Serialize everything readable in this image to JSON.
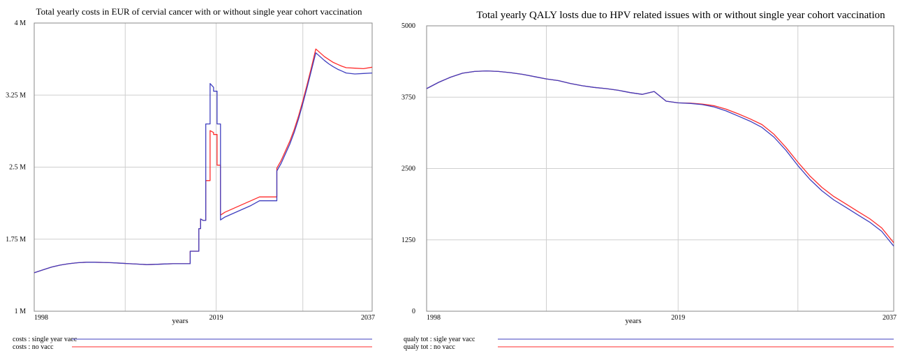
{
  "chart_data": [
    {
      "type": "line",
      "title": "Total yearly costs in EUR of cervial cancer with or without single year cohort vaccination",
      "xlabel": "years",
      "ylabel": "",
      "xlim": [
        1998,
        2037
      ],
      "ylim": [
        1000000,
        4000000
      ],
      "x_ticks": [
        "1998",
        "2019",
        "2037"
      ],
      "y_ticks": [
        "1 M",
        "1.75 M",
        "2.5 M",
        "3.25 M",
        "4 M"
      ],
      "y_tick_values": [
        1000000,
        1750000,
        2500000,
        3250000,
        4000000
      ],
      "x_grid": [
        1998,
        2008.5,
        2019,
        2029,
        2037
      ],
      "grid": true,
      "legend_position": "bottom",
      "series": [
        {
          "name": "costs : single year vacc",
          "color": "#3f3fbf",
          "x": [
            1998,
            1999,
            2000,
            2001,
            2002,
            2003,
            2004,
            2005,
            2006,
            2007,
            2008,
            2009,
            2010,
            2011,
            2012,
            2013,
            2014,
            2015,
            2015.999,
            2016,
            2016.999,
            2017,
            2017.2,
            2017.201,
            2017.5,
            2017.8,
            2017.801,
            2018.3,
            2018.301,
            2018.7,
            2018.701,
            2019.1,
            2019.101,
            2019.5,
            2019.501,
            2020,
            2021,
            2022,
            2023,
            2024,
            2025.999,
            2026,
            2026.5,
            2027,
            2027.5,
            2028,
            2028.5,
            2029,
            2029.5,
            2030,
            2030.5,
            2031,
            2031.5,
            2032,
            2032.5,
            2033,
            2033.5,
            2034,
            2035,
            2036,
            2037
          ],
          "values": [
            1400000,
            1430000,
            1460000,
            1480000,
            1495000,
            1505000,
            1510000,
            1510000,
            1508000,
            1505000,
            1500000,
            1495000,
            1490000,
            1485000,
            1488000,
            1492000,
            1495000,
            1495000,
            1495000,
            1625000,
            1625000,
            1860000,
            1860000,
            1960000,
            1945000,
            1945000,
            2950000,
            2950000,
            3370000,
            3330000,
            3290000,
            3290000,
            2950000,
            2950000,
            1950000,
            1980000,
            2020000,
            2060000,
            2100000,
            2150000,
            2150000,
            2460000,
            2540000,
            2640000,
            2740000,
            2860000,
            3000000,
            3160000,
            3330000,
            3510000,
            3690000,
            3650000,
            3610000,
            3575000,
            3545000,
            3520000,
            3500000,
            3480000,
            3470000,
            3475000,
            3480000
          ]
        },
        {
          "name": "costs : no vacc",
          "color": "#ff2b2b",
          "x": [
            1998,
            1999,
            2000,
            2001,
            2002,
            2003,
            2004,
            2005,
            2006,
            2007,
            2008,
            2009,
            2010,
            2011,
            2012,
            2013,
            2014,
            2015,
            2015.999,
            2016,
            2016.999,
            2017,
            2017.2,
            2017.201,
            2017.5,
            2017.8,
            2017.801,
            2018.3,
            2018.301,
            2018.7,
            2018.701,
            2019.1,
            2019.101,
            2019.5,
            2019.501,
            2020,
            2021,
            2022,
            2023,
            2024,
            2025.999,
            2026,
            2026.5,
            2027,
            2027.5,
            2028,
            2028.5,
            2029,
            2029.5,
            2030,
            2030.5,
            2031,
            2031.5,
            2032,
            2032.5,
            2033,
            2033.5,
            2034,
            2035,
            2036,
            2037
          ],
          "values": [
            1400000,
            1430000,
            1460000,
            1480000,
            1495000,
            1505000,
            1510000,
            1510000,
            1508000,
            1505000,
            1500000,
            1495000,
            1490000,
            1485000,
            1488000,
            1492000,
            1495000,
            1495000,
            1495000,
            1625000,
            1625000,
            1860000,
            1860000,
            1960000,
            1945000,
            1945000,
            2360000,
            2360000,
            2880000,
            2860000,
            2840000,
            2840000,
            2520000,
            2520000,
            2000000,
            2030000,
            2070000,
            2110000,
            2150000,
            2190000,
            2190000,
            2490000,
            2570000,
            2670000,
            2770000,
            2890000,
            3030000,
            3190000,
            3360000,
            3540000,
            3730000,
            3690000,
            3650000,
            3620000,
            3590000,
            3570000,
            3550000,
            3535000,
            3530000,
            3525000,
            3540000
          ]
        }
      ]
    },
    {
      "type": "line",
      "title": "Total yearly QALY losts due to HPV related issues with or without single year cohort vaccination",
      "xlabel": "years",
      "ylabel": "",
      "xlim": [
        1998,
        2037
      ],
      "ylim": [
        0,
        5000
      ],
      "x_ticks": [
        "1998",
        "2019",
        "2037"
      ],
      "y_ticks": [
        "0",
        "1250",
        "2500",
        "3750",
        "5000"
      ],
      "y_tick_values": [
        0,
        1250,
        2500,
        3750,
        5000
      ],
      "x_grid": [
        1998,
        2008,
        2019,
        2029,
        2037
      ],
      "grid": true,
      "legend_position": "bottom",
      "series": [
        {
          "name": "qualy tot : sigle year vacc",
          "color": "#3f3fbf",
          "x": [
            1998,
            1999,
            2000,
            2001,
            2002,
            2003,
            2004,
            2005,
            2006,
            2007,
            2008,
            2009,
            2010,
            2011,
            2012,
            2013,
            2014,
            2015,
            2016,
            2017,
            2018,
            2019,
            2020,
            2021,
            2022,
            2023,
            2024,
            2025,
            2026,
            2027,
            2028,
            2029,
            2030,
            2031,
            2032,
            2033,
            2034,
            2035,
            2036,
            2037
          ],
          "values": [
            3900,
            4010,
            4100,
            4170,
            4200,
            4210,
            4200,
            4180,
            4150,
            4110,
            4070,
            4040,
            3990,
            3950,
            3920,
            3900,
            3870,
            3830,
            3800,
            3850,
            3680,
            3650,
            3640,
            3620,
            3580,
            3510,
            3420,
            3330,
            3220,
            3050,
            2820,
            2550,
            2310,
            2110,
            1950,
            1820,
            1690,
            1560,
            1400,
            1140
          ]
        },
        {
          "name": "qualy tot : no vacc",
          "color": "#ff2b2b",
          "x": [
            1998,
            1999,
            2000,
            2001,
            2002,
            2003,
            2004,
            2005,
            2006,
            2007,
            2008,
            2009,
            2010,
            2011,
            2012,
            2013,
            2014,
            2015,
            2016,
            2017,
            2018,
            2019,
            2020,
            2021,
            2022,
            2023,
            2024,
            2025,
            2026,
            2027,
            2028,
            2029,
            2030,
            2031,
            2032,
            2033,
            2034,
            2035,
            2036,
            2037
          ],
          "values": [
            3900,
            4010,
            4100,
            4170,
            4200,
            4210,
            4200,
            4180,
            4150,
            4110,
            4070,
            4040,
            3990,
            3950,
            3920,
            3900,
            3870,
            3830,
            3800,
            3850,
            3680,
            3650,
            3645,
            3630,
            3600,
            3540,
            3460,
            3370,
            3270,
            3100,
            2870,
            2610,
            2370,
            2170,
            2010,
            1880,
            1750,
            1620,
            1460,
            1200
          ]
        }
      ]
    }
  ]
}
